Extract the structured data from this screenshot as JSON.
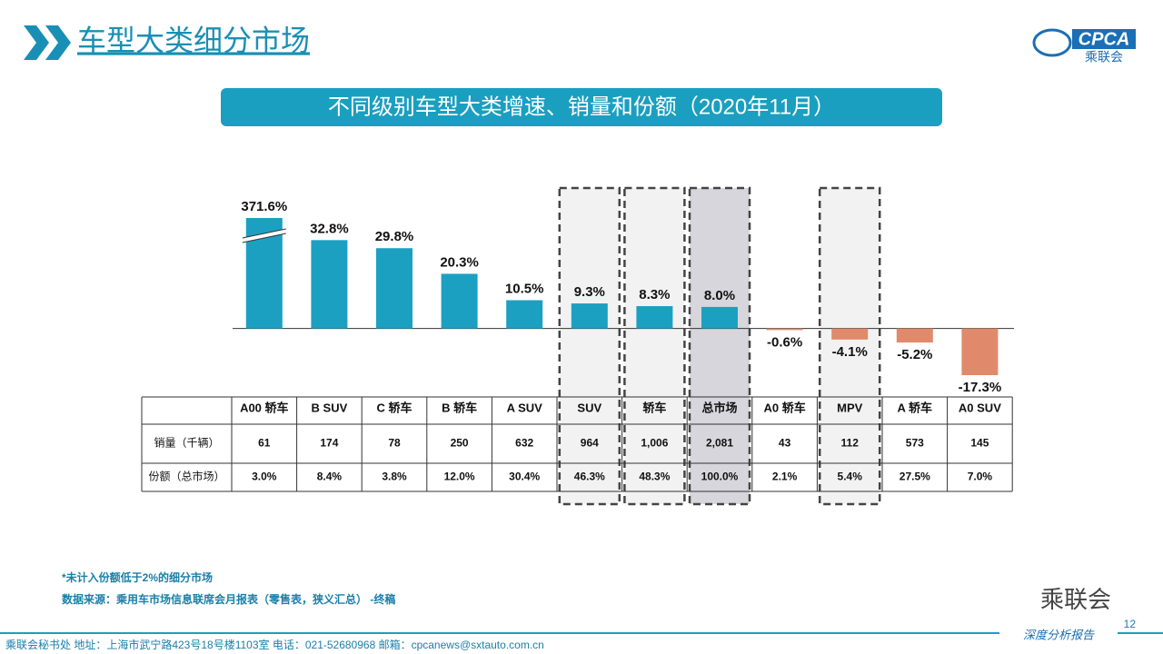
{
  "header": {
    "title": "车型大类细分市场",
    "logo": "CPCA",
    "logo_sub": "乘联会"
  },
  "chart_data": {
    "type": "bar",
    "title": "不同级别车型大类增速、销量和份额（2020年11月）",
    "categories": [
      "A00 轿车",
      "B SUV",
      "C 轿车",
      "B 轿车",
      "A SUV",
      "SUV",
      "轿车",
      "总市场",
      "A0 轿车",
      "MPV",
      "A 轿车",
      "A0 SUV"
    ],
    "values": [
      371.6,
      32.8,
      29.8,
      20.3,
      10.5,
      9.3,
      8.3,
      8.0,
      -0.6,
      -4.1,
      -5.2,
      -17.3
    ],
    "value_labels": [
      "371.6%",
      "32.8%",
      "29.8%",
      "20.3%",
      "10.5%",
      "9.3%",
      "8.3%",
      "8.0%",
      "-0.6%",
      "-4.1%",
      "-5.2%",
      "-17.3%"
    ],
    "color": "#1ca0c2",
    "negative_color": "#e0896b",
    "ylim": [
      -20,
      41
    ]
  },
  "table": {
    "rows": [
      {
        "label": "销量（千辆）",
        "cells": [
          "61",
          "174",
          "78",
          "250",
          "632",
          "964",
          "1,006",
          "2,081",
          "43",
          "112",
          "573",
          "145"
        ]
      },
      {
        "label": "份额（总市场）",
        "cells": [
          "3.0%",
          "8.4%",
          "3.8%",
          "12.0%",
          "30.4%",
          "46.3%",
          "48.3%",
          "100.0%",
          "2.1%",
          "5.4%",
          "27.5%",
          "7.0%"
        ]
      }
    ]
  },
  "notes": [
    "*未计入份额低于2%的细分市场",
    "数据来源：乘用车市场信息联席会月报表（零售表，狭义汇总）   -终稿"
  ],
  "footer": {
    "contact": "乘联会秘书处    地址：上海市武宁路423号18号楼1103室    电话：021-52680968    邮箱：cpcanews@sxtauto.com.cn",
    "tagline": "深度分析报告",
    "page": "12",
    "wechat": "乘联会"
  }
}
